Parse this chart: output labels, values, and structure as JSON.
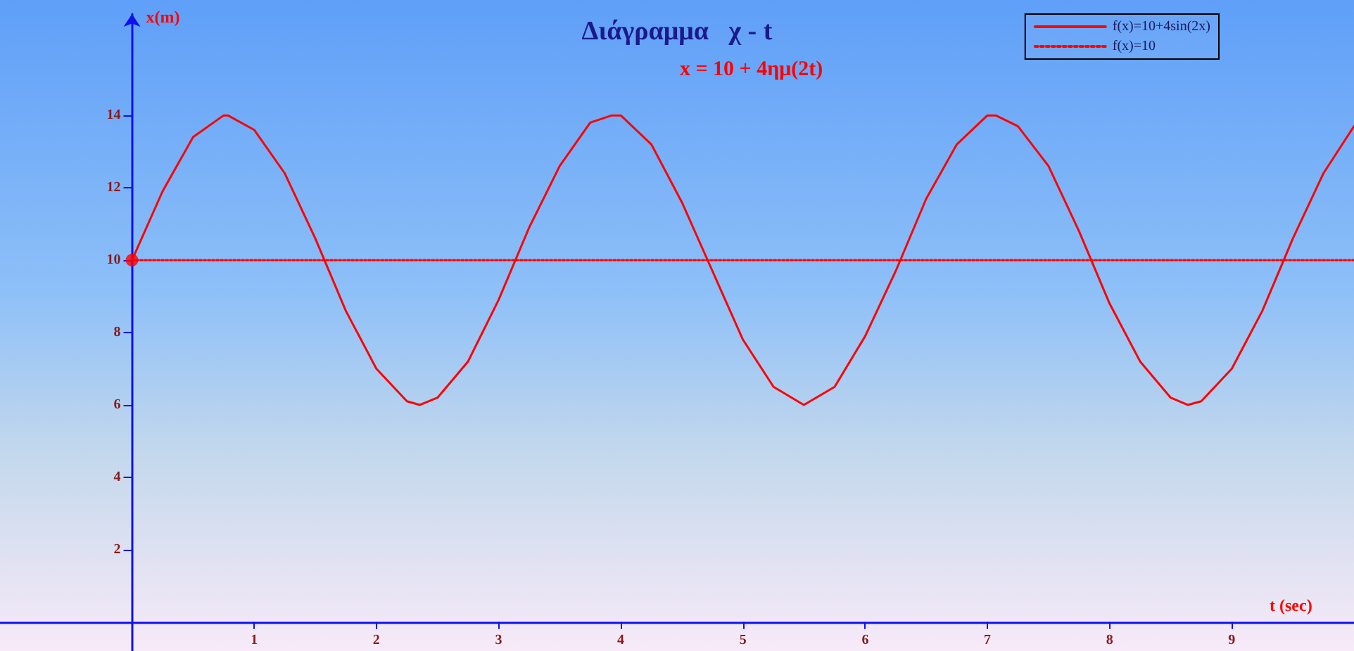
{
  "chart_data": {
    "type": "line",
    "title": "Διάγραμμα   χ - t",
    "subtitle": "x = 10 + 4ημ(2t)",
    "xlabel": "t (sec)",
    "ylabel": "x(m)",
    "xlim": [
      -1.08,
      10
    ],
    "ylim": [
      -0.8,
      16.8
    ],
    "xticks": [
      1,
      2,
      3,
      4,
      5,
      6,
      7,
      8,
      9
    ],
    "yticks": [
      2,
      4,
      6,
      8,
      10,
      12,
      14
    ],
    "grid": false,
    "legend": "top right",
    "ref_lines": [
      {
        "axis": "y",
        "value": 0,
        "color": "#1010ee"
      }
    ],
    "series": [
      {
        "name": "f(x)=10+4sin(2x)",
        "color": "#ff0000",
        "line_style": "solid",
        "x": [
          0,
          0.25,
          0.5,
          0.75,
          0.785,
          1,
          1.25,
          1.5,
          1.75,
          2,
          2.25,
          2.356,
          2.5,
          2.75,
          3,
          3.25,
          3.5,
          3.75,
          3.927,
          4,
          4.25,
          4.5,
          4.75,
          5,
          5.25,
          5.498,
          5.5,
          5.75,
          6,
          6.25,
          6.5,
          6.75,
          7,
          7.069,
          7.25,
          7.5,
          7.75,
          8,
          8.25,
          8.5,
          8.639,
          8.75,
          9,
          9.25,
          9.5,
          9.75,
          10
        ],
        "values": [
          10,
          11.9,
          13.4,
          14,
          14,
          13.6,
          12.4,
          10.6,
          8.6,
          7,
          6.1,
          6,
          6.2,
          7.2,
          8.9,
          10.9,
          12.6,
          13.8,
          14,
          14,
          13.2,
          11.6,
          9.7,
          7.8,
          6.5,
          6,
          6,
          6.5,
          7.9,
          9.7,
          11.7,
          13.2,
          14,
          14,
          13.7,
          12.6,
          10.8,
          8.8,
          7.2,
          6.2,
          6,
          6.1,
          7,
          8.6,
          10.6,
          12.4,
          13.7
        ]
      },
      {
        "name": "f(x)=10",
        "color": "#ff0000",
        "line_style": "dotted",
        "x": [
          0,
          10
        ],
        "values": [
          10,
          10
        ]
      },
      {
        "type": "scatter",
        "color": "#ff0000",
        "marker": "circle",
        "x": [
          0
        ],
        "values": [
          10
        ]
      }
    ]
  }
}
